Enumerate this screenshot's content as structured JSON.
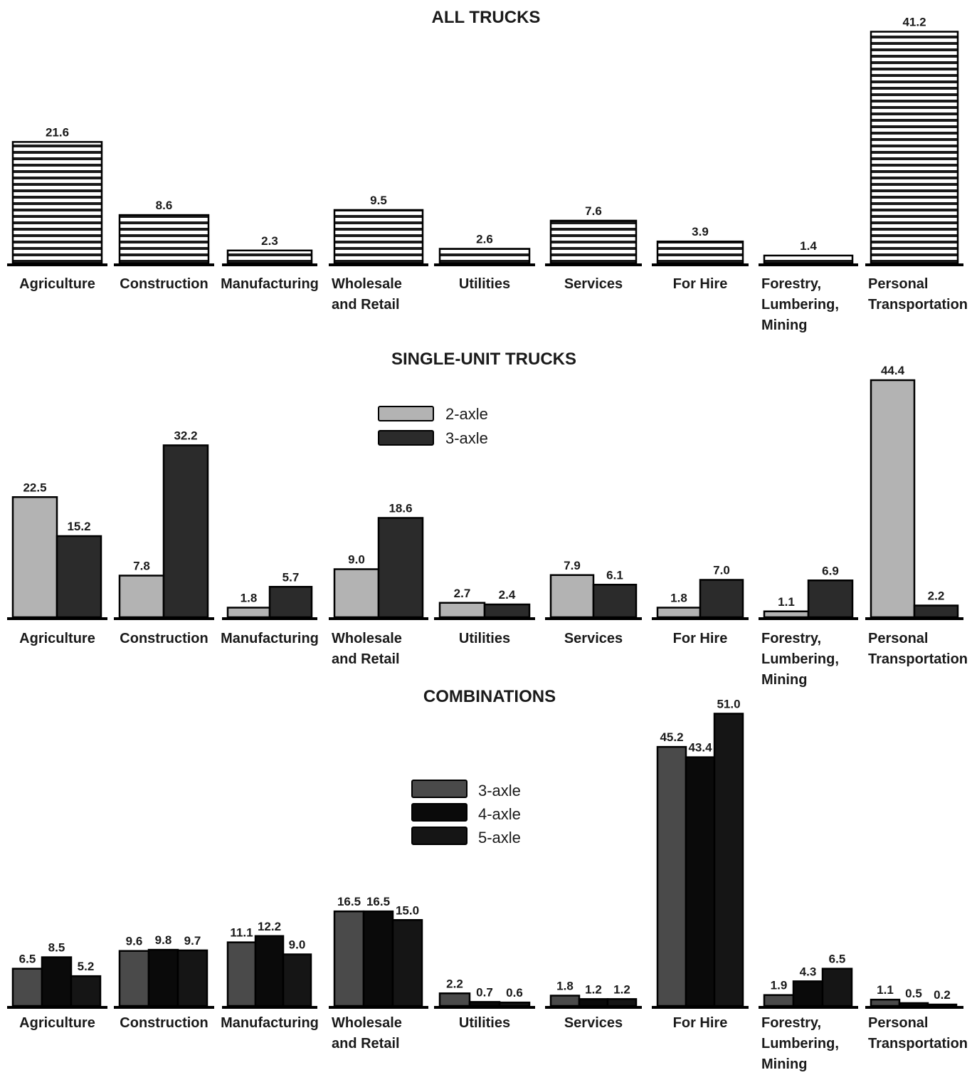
{
  "chart_data": [
    {
      "type": "bar",
      "title": "ALL TRUCKS",
      "categories": [
        "Agriculture",
        "Construction",
        "Manufacturing",
        "Wholesale and Retail",
        "Utilities",
        "Services",
        "For Hire",
        "Forestry, Lumbering, Mining",
        "Personal Transportation"
      ],
      "category_lines": [
        [
          "Agriculture"
        ],
        [
          "Construction"
        ],
        [
          "Manufacturing"
        ],
        [
          "Wholesale",
          "and Retail"
        ],
        [
          "Utilities"
        ],
        [
          "Services"
        ],
        [
          "For Hire"
        ],
        [
          "Forestry,",
          "Lumbering,",
          "Mining"
        ],
        [
          "Personal",
          "Transportation"
        ]
      ],
      "series": [
        {
          "values": [
            21.6,
            8.6,
            2.3,
            9.5,
            2.6,
            7.6,
            3.9,
            1.4,
            41.2
          ],
          "labels": [
            "21.6",
            "8.6",
            "2.3",
            "9.5",
            "2.6",
            "7.6",
            "3.9",
            "1.4",
            "41.2"
          ],
          "color": "#ffffff",
          "pattern": "horizontal-stripes"
        }
      ],
      "legend": []
    },
    {
      "type": "bar",
      "title": "SINGLE-UNIT TRUCKS",
      "categories": [
        "Agriculture",
        "Construction",
        "Manufacturing",
        "Wholesale and Retail",
        "Utilities",
        "Services",
        "For Hire",
        "Forestry, Lumbering, Mining",
        "Personal Transportation"
      ],
      "category_lines": [
        [
          "Agriculture"
        ],
        [
          "Construction"
        ],
        [
          "Manufacturing"
        ],
        [
          "Wholesale",
          "and Retail"
        ],
        [
          "Utilities"
        ],
        [
          "Services"
        ],
        [
          "For Hire"
        ],
        [
          "Forestry,",
          "Lumbering,",
          "Mining"
        ],
        [
          "Personal",
          "Transportation"
        ]
      ],
      "series": [
        {
          "name": "2-axle",
          "values": [
            22.5,
            7.8,
            1.8,
            9.0,
            2.7,
            7.9,
            1.8,
            1.1,
            44.4
          ],
          "labels": [
            "22.5",
            "7.8",
            "1.8",
            "9.0",
            "2.7",
            "7.9",
            "1.8",
            "1.1",
            "44.4"
          ],
          "color": "#b3b3b3"
        },
        {
          "name": "3-axle",
          "values": [
            15.2,
            32.2,
            5.7,
            18.6,
            2.4,
            6.1,
            7.0,
            6.9,
            2.2
          ],
          "labels": [
            "15.2",
            "32.2",
            "5.7",
            "18.6",
            "2.4",
            "6.1",
            "7.0",
            "6.9",
            "2.2"
          ],
          "color": "#2b2b2b"
        }
      ],
      "legend": [
        "2-axle",
        "3-axle"
      ],
      "legend_position": "top-center"
    },
    {
      "type": "bar",
      "title": "COMBINATIONS",
      "categories": [
        "Agriculture",
        "Construction",
        "Manufacturing",
        "Wholesale and Retail",
        "Utilities",
        "Services",
        "For Hire",
        "Forestry, Lumbering, Mining",
        "Personal Transportation"
      ],
      "category_lines": [
        [
          "Agriculture"
        ],
        [
          "Construction"
        ],
        [
          "Manufacturing"
        ],
        [
          "Wholesale",
          "and Retail"
        ],
        [
          "Utilities"
        ],
        [
          "Services"
        ],
        [
          "For Hire"
        ],
        [
          "Forestry,",
          "Lumbering,",
          "Mining"
        ],
        [
          "Personal",
          "Transportation"
        ]
      ],
      "series": [
        {
          "name": "3-axle",
          "values": [
            6.5,
            9.6,
            11.1,
            16.5,
            2.2,
            1.8,
            45.2,
            1.9,
            1.1
          ],
          "labels": [
            "6.5",
            "9.6",
            "11.1",
            "16.5",
            "2.2",
            "1.8",
            "45.2",
            "1.9",
            "1.1"
          ],
          "color": "#4a4a4a"
        },
        {
          "name": "4-axle",
          "values": [
            8.5,
            9.8,
            12.2,
            16.5,
            0.7,
            1.2,
            43.4,
            4.3,
            0.5
          ],
          "labels": [
            "8.5",
            "9.8",
            "12.2",
            "16.5",
            "0.7",
            "1.2",
            "43.4",
            "4.3",
            "0.5"
          ],
          "color": "#0a0a0a"
        },
        {
          "name": "5-axle",
          "values": [
            5.2,
            9.7,
            9.0,
            15.0,
            0.6,
            1.2,
            51.0,
            6.5,
            0.2
          ],
          "labels": [
            "5.2",
            "9.7",
            "9.0",
            "15.0",
            "0.6",
            "1.2",
            "51.0",
            "6.5",
            "0.2"
          ],
          "color": "#151515"
        }
      ],
      "legend": [
        "3-axle",
        "4-axle",
        "5-axle"
      ],
      "legend_position": "center-left"
    }
  ]
}
